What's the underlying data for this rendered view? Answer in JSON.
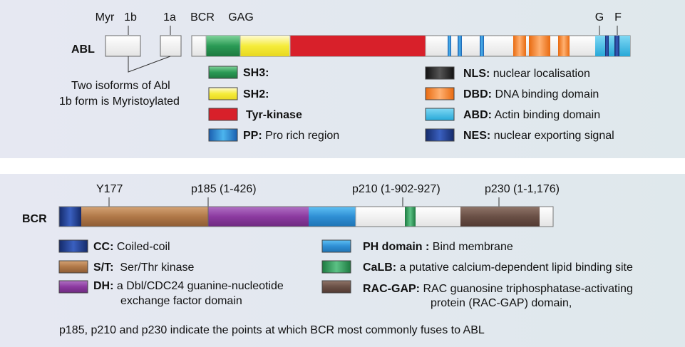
{
  "colors": {
    "sh3": "#2a9a55",
    "sh2": "#f5ec3a",
    "tyr_kinase": "#d8202a",
    "pp": "#2f8fd4",
    "nls": "#222222",
    "dbd": "#f08228",
    "abd": "#3bb4e0",
    "nes": "#1c3a8c",
    "cc": "#1c3a8c",
    "st": "#b07848",
    "dh": "#8c3aa0",
    "ph": "#2f8fd4",
    "calb": "#2a9a55",
    "racgap": "#6a5046",
    "blank": "#f2f2f2"
  },
  "abl": {
    "name": "ABL",
    "markers": {
      "myr": "Myr",
      "exon_1b": "1b",
      "exon_1a": "1a",
      "bcr": "BCR",
      "gag": "GAG",
      "g": "G",
      "f": "F"
    },
    "isoform_note_line1": "Two isoforms of Abl",
    "isoform_note_line2": "1b form is Myristoylated",
    "legend": [
      {
        "key": "SH3:",
        "desc": "",
        "color_key": "sh3"
      },
      {
        "key": "SH2:",
        "desc": "",
        "color_key": "sh2"
      },
      {
        "key": "Tyr-kinase",
        "desc": "",
        "color_key": "tyr_kinase"
      },
      {
        "key": "PP:",
        "desc": "Pro rich region",
        "color_key": "pp"
      },
      {
        "key": "NLS:",
        "desc": "nuclear localisation",
        "color_key": "nls"
      },
      {
        "key": "DBD:",
        "desc": "DNA binding domain",
        "color_key": "dbd"
      },
      {
        "key": "ABD:",
        "desc": "Actin binding domain",
        "color_key": "abd"
      },
      {
        "key": "NES:",
        "desc": "nuclear exporting signal",
        "color_key": "nes"
      }
    ]
  },
  "bcr": {
    "name": "BCR",
    "markers": {
      "y177": "Y177",
      "p185": "p185 (1-426)",
      "p210": "p210 (1-902-927)",
      "p230": "p230 (1-1,176)"
    },
    "legend": [
      {
        "key": "CC:",
        "desc": "Coiled-coil",
        "color_key": "cc"
      },
      {
        "key": "S/T:",
        "desc": "Ser/Thr kinase",
        "color_key": "st"
      },
      {
        "key": "DH:",
        "desc": "a Dbl/CDC24 guanine-nucleotide",
        "desc2": "exchange factor domain",
        "color_key": "dh"
      },
      {
        "key": "PH domain :",
        "desc": "Bind membrane",
        "color_key": "ph"
      },
      {
        "key": "CaLB:",
        "desc": "a putative calcium-dependent lipid binding site",
        "color_key": "calb"
      },
      {
        "key": "RAC-GAP:",
        "desc": "RAC guanosine triphosphatase-activating",
        "desc2": "protein (RAC-GAP) domain,",
        "color_key": "racgap"
      }
    ],
    "footnote": "p185, p210 and p230 indicate the points at which BCR most commonly fuses to ABL"
  }
}
